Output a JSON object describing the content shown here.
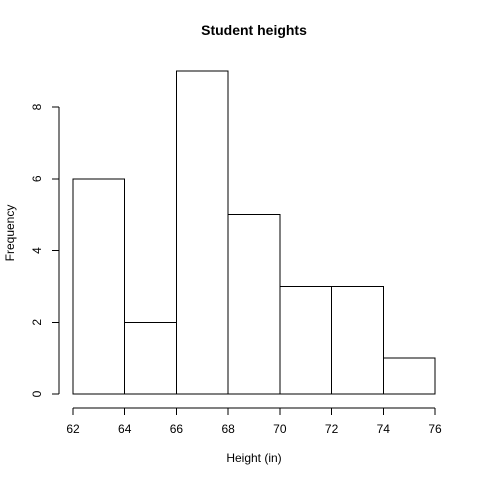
{
  "chart_data": {
    "type": "bar",
    "title": "Student heights",
    "xlabel": "Height (in)",
    "ylabel": "Frequency",
    "bins": [
      {
        "from": 62,
        "to": 64,
        "count": 6
      },
      {
        "from": 64,
        "to": 66,
        "count": 2
      },
      {
        "from": 66,
        "to": 68,
        "count": 9
      },
      {
        "from": 68,
        "to": 70,
        "count": 5
      },
      {
        "from": 70,
        "to": 72,
        "count": 3
      },
      {
        "from": 72,
        "to": 74,
        "count": 3
      },
      {
        "from": 74,
        "to": 76,
        "count": 1
      }
    ],
    "xlim": [
      62,
      76
    ],
    "ylim": [
      0,
      9
    ],
    "xticks": [
      "62",
      "64",
      "66",
      "68",
      "70",
      "72",
      "74",
      "76"
    ],
    "yticks": [
      "0",
      "2",
      "4",
      "6",
      "8"
    ],
    "grid": false,
    "colors": {
      "bar_fill": "#ffffff",
      "bar_stroke": "#000000"
    }
  }
}
